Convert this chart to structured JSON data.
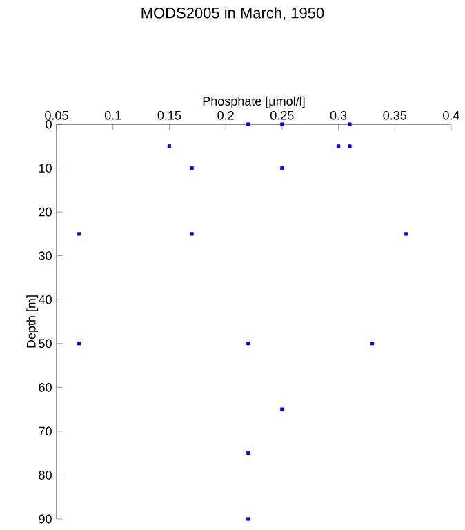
{
  "chart_data": {
    "type": "scatter",
    "title": "MODS2005 in March, 1950",
    "xlabel": "Phosphate [µmol/l]",
    "ylabel": "Depth [m]",
    "xlim": [
      0.05,
      0.4
    ],
    "xticks": [
      0.05,
      0.1,
      0.15,
      0.2,
      0.25,
      0.3,
      0.35,
      0.4
    ],
    "ylim": [
      90,
      0
    ],
    "yticks": [
      0,
      10,
      20,
      30,
      40,
      50,
      60,
      70,
      80,
      90
    ],
    "marker": "square",
    "series": [
      {
        "color": "#0000ff",
        "x": [
          0.22,
          0.25,
          0.31,
          0.15,
          0.3,
          0.31,
          0.17,
          0.25,
          0.07,
          0.17,
          0.36,
          0.07,
          0.22,
          0.33,
          0.25,
          0.22,
          0.22
        ],
        "values": [
          0,
          0,
          0,
          5,
          5,
          5,
          10,
          10,
          25,
          25,
          25,
          50,
          50,
          50,
          65,
          75,
          90
        ]
      }
    ]
  }
}
